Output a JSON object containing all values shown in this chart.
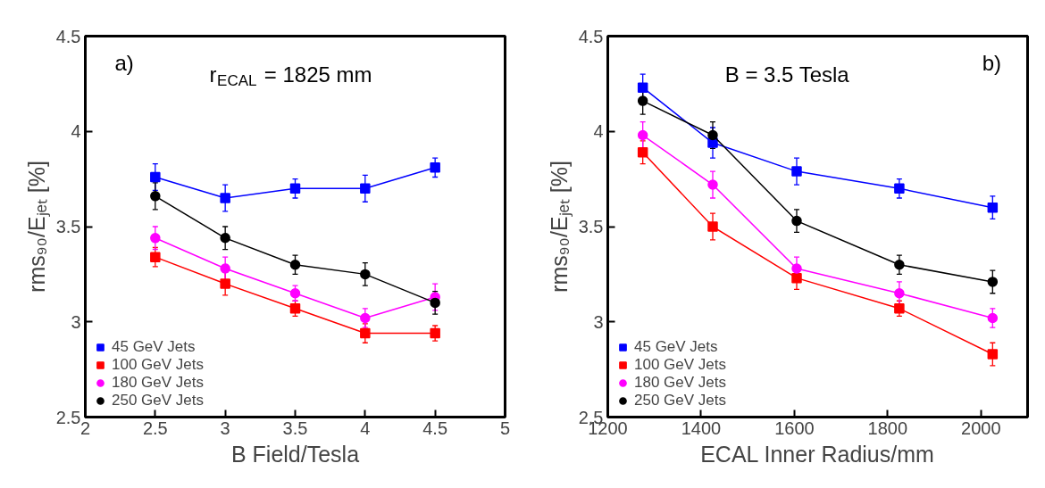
{
  "chart_data": [
    {
      "type": "line",
      "xlabel": "B Field/Tesla",
      "ylabel": "rms₉₀/Eⱼₑₜ [%]",
      "annotations": [
        "a)",
        "r$_{ECAL}$ = 1825 mm"
      ],
      "x": [
        2.5,
        3,
        3.5,
        4,
        4.5
      ],
      "xlim": [
        2,
        5
      ],
      "xticks": [
        2,
        2.5,
        3,
        3.5,
        4,
        4.5,
        5
      ],
      "ylim": [
        2.5,
        4.5
      ],
      "yticks": [
        2.5,
        3,
        3.5,
        4,
        4.5
      ],
      "grid": false,
      "legend": "bottom left",
      "series": [
        {
          "name": "45 GeV Jets",
          "color": "#0000ff",
          "marker": "square",
          "values": [
            3.76,
            3.65,
            3.7,
            3.7,
            3.81
          ],
          "errors": [
            0.07,
            0.07,
            0.05,
            0.07,
            0.05
          ]
        },
        {
          "name": "100 GeV Jets",
          "color": "#ff0000",
          "marker": "square",
          "values": [
            3.34,
            3.2,
            3.07,
            2.94,
            2.94
          ],
          "errors": [
            0.05,
            0.06,
            0.04,
            0.05,
            0.04
          ]
        },
        {
          "name": "180 GeV Jets",
          "color": "#ff00ff",
          "marker": "circle",
          "values": [
            3.44,
            3.28,
            3.15,
            3.02,
            3.13
          ],
          "errors": [
            0.06,
            0.06,
            0.04,
            0.05,
            0.07
          ]
        },
        {
          "name": "250 GeV Jets",
          "color": "#000000",
          "marker": "circle",
          "values": [
            3.66,
            3.44,
            3.3,
            3.25,
            3.1
          ],
          "errors": [
            0.07,
            0.06,
            0.05,
            0.06,
            0.06
          ]
        }
      ]
    },
    {
      "type": "line",
      "xlabel": "ECAL Inner Radius/mm",
      "ylabel": "rms₉₀/Eⱼₑₜ [%]",
      "annotations": [
        "B = 3.5 Tesla",
        "b)"
      ],
      "x": [
        1275,
        1425,
        1605,
        1825,
        2025
      ],
      "xlim": [
        1200,
        2100
      ],
      "xticks": [
        1200,
        1400,
        1600,
        1800,
        2000
      ],
      "ylim": [
        2.5,
        4.5
      ],
      "yticks": [
        2.5,
        3,
        3.5,
        4,
        4.5
      ],
      "grid": false,
      "legend": "bottom left",
      "series": [
        {
          "name": "45 GeV Jets",
          "color": "#0000ff",
          "marker": "square",
          "values": [
            4.23,
            3.94,
            3.79,
            3.7,
            3.6
          ],
          "errors": [
            0.07,
            0.08,
            0.07,
            0.05,
            0.06
          ]
        },
        {
          "name": "100 GeV Jets",
          "color": "#ff0000",
          "marker": "square",
          "values": [
            3.89,
            3.5,
            3.23,
            3.07,
            2.83
          ],
          "errors": [
            0.06,
            0.07,
            0.06,
            0.04,
            0.06
          ]
        },
        {
          "name": "180 GeV Jets",
          "color": "#ff00ff",
          "marker": "circle",
          "values": [
            3.98,
            3.72,
            3.28,
            3.15,
            3.02
          ],
          "errors": [
            0.07,
            0.07,
            0.06,
            0.06,
            0.05
          ]
        },
        {
          "name": "250 GeV Jets",
          "color": "#000000",
          "marker": "circle",
          "values": [
            4.16,
            3.98,
            3.53,
            3.3,
            3.21
          ],
          "errors": [
            0.07,
            0.07,
            0.06,
            0.05,
            0.06
          ]
        }
      ]
    }
  ]
}
